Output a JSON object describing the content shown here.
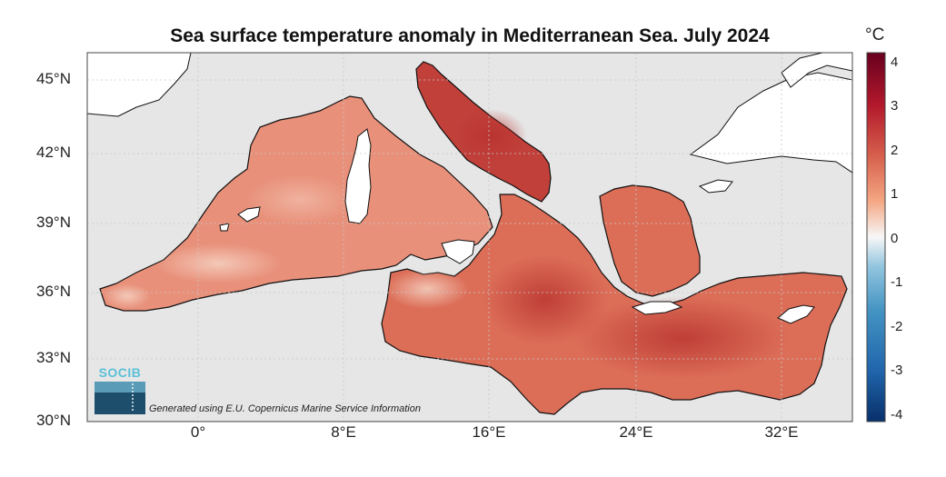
{
  "title": "Sea surface temperature anomaly in Mediterranean Sea. July 2024",
  "colorbar": {
    "unit": "°C",
    "ticks": [
      "4",
      "3",
      "2",
      "1",
      "0",
      "-1",
      "-2",
      "-3",
      "-4"
    ],
    "range": [
      -4.2,
      4.2
    ],
    "colors": [
      "#08306b",
      "#2166ac",
      "#4393c3",
      "#92c5de",
      "#f7f7f7",
      "#f4a582",
      "#d6604d",
      "#b2182b",
      "#67001f"
    ]
  },
  "axes": {
    "x_ticks": [
      "0°",
      "8°E",
      "16°E",
      "24°E",
      "32°E"
    ],
    "y_ticks": [
      "45°N",
      "42°N",
      "39°N",
      "36°N",
      "33°N",
      "30°N"
    ]
  },
  "logo": {
    "text": "SOCIB"
  },
  "credit": "Generated using E.U. Copernicus Marine Service Information",
  "colors": {
    "land": "#ffffff",
    "ocean_nodata": "#e6e6e6",
    "sea_base": "#e48068",
    "coast": "#111111"
  }
}
